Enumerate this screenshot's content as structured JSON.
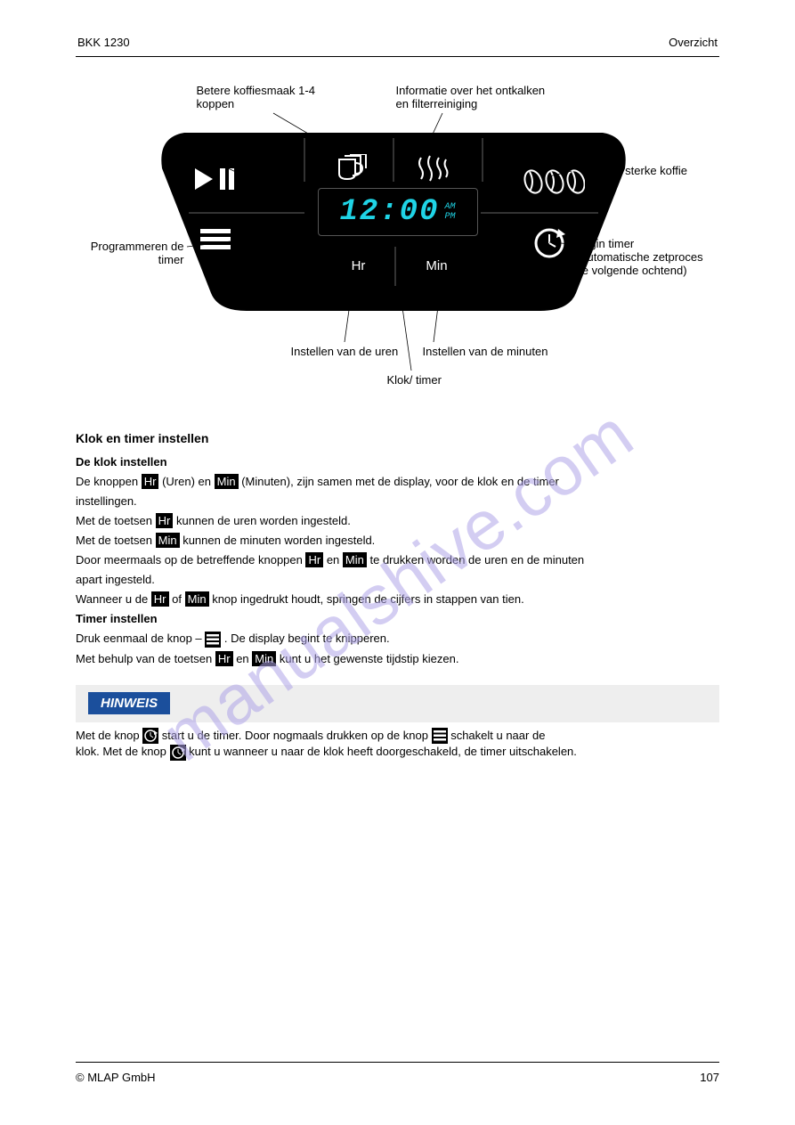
{
  "header": {
    "model": "BKK 1230",
    "right_label": "Overzicht"
  },
  "diagram": {
    "callout_cups": "Betere koffiesmaak 1-4\nkoppen",
    "callout_steam": "Informatie over het ontkalken\nen filterreiniging",
    "callout_beans": "Voor een sterke koffie",
    "callout_start": "Begin /\nStop",
    "callout_program": "Programmeren de\ntimer",
    "callout_timer": "Begin timer\n(Automatische zetproces\nde volgende ochtend)",
    "callout_hr": "Instellen van de uren",
    "callout_min": "Instellen van de minuten",
    "callout_clockmid": "Klok/ timer",
    "clock": "12:00",
    "am": "AM",
    "pm": "PM",
    "hr_label": "Hr",
    "min_label": "Min"
  },
  "section1_heading": "Klok en timer instellen",
  "section1_sub": "De klok instellen",
  "text": {
    "l1a": "De knoppen ",
    "l1b": " (Uren) en ",
    "l1c": " (Minuten), zijn samen met de display, voor de klok en de timer",
    "l2": "instellingen.",
    "l3a": "Met de toetsen ",
    "l3b": " kunnen de uren worden ingesteld.",
    "l4a": "Met de toetsen ",
    "l4b": " kunnen de minuten worden ingesteld.",
    "l5a": "Door meermaals op de betreffende knoppen ",
    "l5b": " en ",
    "l5c": " te drukken worden de uren en de minuten",
    "l6": "apart ingesteld.",
    "l7a": "Wanneer u de ",
    "l7b": " of ",
    "l7c": " knop ingedrukt houdt, springen de cijfers in stappen van tien.",
    "sub2": "Timer instellen",
    "l8a": "Druk eenmaal de knop – ",
    "l8b": ". De display begint te knipperen.",
    "l9a": "Met behulp van de toetsen ",
    "l9b": " en ",
    "l9c": " kunt u het gewenste tijdstip kiezen."
  },
  "hinweis": {
    "tag": "HINWEIS",
    "body1a": "Met de knop ",
    "body1b": " start u de timer. Door nogmaals drukken op de knop ",
    "body1c": " schakelt u naar de",
    "body2a": "klok. Met de knop ",
    "body2b": " kunt u wanneer u naar de klok heeft doorgeschakeld, de timer uitschakelen."
  },
  "footer": {
    "copyright": "© MLAP GmbH",
    "page": "107"
  },
  "watermark": "manualshive.com",
  "badges": {
    "hr": "Hr",
    "min": "Min"
  },
  "colors": {
    "panel_bg": "#000000",
    "display_text": "#1fd4e6",
    "hinweis_bg": "#eeeeee",
    "hinweis_tag": "#1b4f9c",
    "watermark": "#b0a5e8"
  }
}
